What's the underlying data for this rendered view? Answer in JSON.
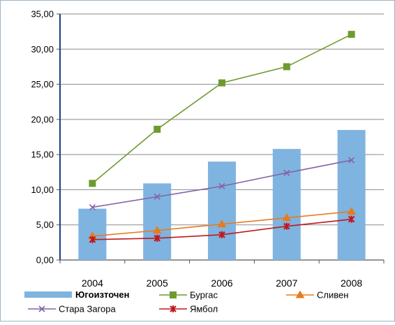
{
  "chart_data": {
    "type": "bar",
    "categories": [
      "2004",
      "2005",
      "2006",
      "2007",
      "2008"
    ],
    "ylim": [
      0,
      35
    ],
    "yticks": [
      "0,00",
      "5,00",
      "10,00",
      "15,00",
      "20,00",
      "25,00",
      "30,00",
      "35,00"
    ],
    "grid": true,
    "legend_position": "bottom",
    "series": [
      {
        "name": "Югоизточен",
        "kind": "bar",
        "color": "#7fb4e0",
        "values": [
          7.3,
          10.9,
          14.0,
          15.8,
          18.5
        ]
      },
      {
        "name": "Бургас",
        "kind": "line",
        "marker": "square",
        "color": "#6e9a2f",
        "values": [
          10.9,
          18.6,
          25.2,
          27.5,
          32.1
        ]
      },
      {
        "name": "Сливен",
        "kind": "line",
        "marker": "triangle",
        "color": "#e87b1e",
        "values": [
          3.4,
          4.2,
          5.1,
          6.0,
          6.9
        ]
      },
      {
        "name": "Стара Загора",
        "kind": "line",
        "marker": "x",
        "color": "#8464a6",
        "values": [
          7.5,
          9.0,
          10.5,
          12.4,
          14.2
        ]
      },
      {
        "name": "Ямбол",
        "kind": "line",
        "marker": "star",
        "color": "#c0181e",
        "values": [
          2.9,
          3.1,
          3.6,
          4.8,
          5.8
        ]
      }
    ]
  }
}
